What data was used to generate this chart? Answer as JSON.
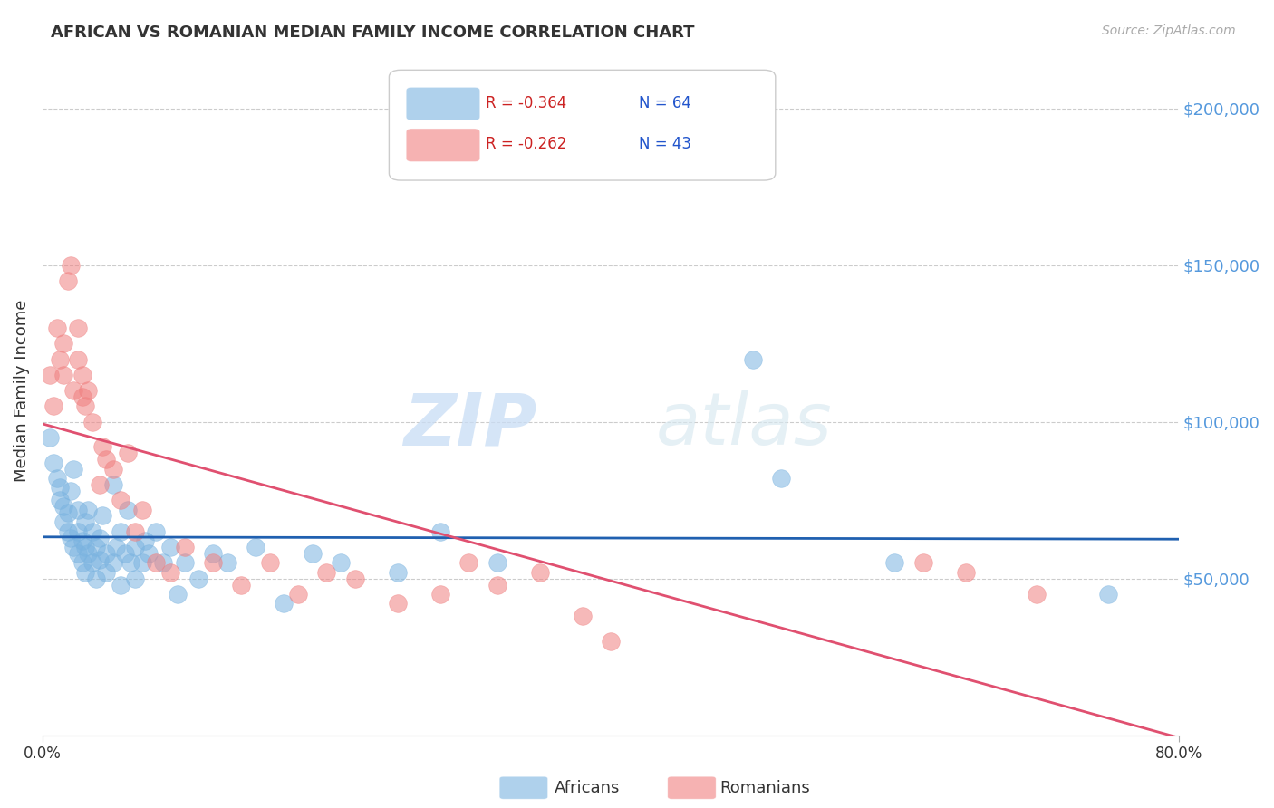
{
  "title": "AFRICAN VS ROMANIAN MEDIAN FAMILY INCOME CORRELATION CHART",
  "source": "Source: ZipAtlas.com",
  "ylabel": "Median Family Income",
  "xlim": [
    0.0,
    0.8
  ],
  "ylim": [
    0,
    220000
  ],
  "yticks": [
    50000,
    100000,
    150000,
    200000
  ],
  "ytick_labels": [
    "$50,000",
    "$100,000",
    "$150,000",
    "$200,000"
  ],
  "african_color": "#7ab3e0",
  "romanian_color": "#f08080",
  "african_line_color": "#2060b0",
  "romanian_line_color": "#e05070",
  "legend_R_african": "R = -0.364",
  "legend_N_african": "N = 64",
  "legend_R_romanian": "R = -0.262",
  "legend_N_romanian": "N = 43",
  "watermark_ZIP": "ZIP",
  "watermark_atlas": "atlas",
  "africans_label": "Africans",
  "romanians_label": "Romanians",
  "african_scatter_x": [
    0.005,
    0.008,
    0.01,
    0.012,
    0.012,
    0.015,
    0.015,
    0.018,
    0.018,
    0.02,
    0.02,
    0.022,
    0.022,
    0.025,
    0.025,
    0.025,
    0.028,
    0.028,
    0.03,
    0.03,
    0.03,
    0.032,
    0.032,
    0.035,
    0.035,
    0.038,
    0.038,
    0.04,
    0.04,
    0.042,
    0.045,
    0.045,
    0.05,
    0.05,
    0.052,
    0.055,
    0.055,
    0.058,
    0.06,
    0.062,
    0.065,
    0.065,
    0.07,
    0.072,
    0.075,
    0.08,
    0.085,
    0.09,
    0.095,
    0.1,
    0.11,
    0.12,
    0.13,
    0.15,
    0.17,
    0.19,
    0.21,
    0.25,
    0.28,
    0.32,
    0.5,
    0.52,
    0.6,
    0.75
  ],
  "african_scatter_y": [
    95000,
    87000,
    82000,
    79000,
    75000,
    73000,
    68000,
    65000,
    71000,
    63000,
    78000,
    60000,
    85000,
    72000,
    65000,
    58000,
    62000,
    55000,
    68000,
    60000,
    52000,
    58000,
    72000,
    65000,
    55000,
    60000,
    50000,
    56000,
    63000,
    70000,
    58000,
    52000,
    80000,
    55000,
    60000,
    65000,
    48000,
    58000,
    72000,
    55000,
    60000,
    50000,
    55000,
    62000,
    58000,
    65000,
    55000,
    60000,
    45000,
    55000,
    50000,
    58000,
    55000,
    60000,
    42000,
    58000,
    55000,
    52000,
    65000,
    55000,
    120000,
    82000,
    55000,
    45000
  ],
  "romanian_scatter_x": [
    0.005,
    0.008,
    0.01,
    0.012,
    0.015,
    0.015,
    0.018,
    0.02,
    0.022,
    0.025,
    0.025,
    0.028,
    0.028,
    0.03,
    0.032,
    0.035,
    0.04,
    0.042,
    0.045,
    0.05,
    0.055,
    0.06,
    0.065,
    0.07,
    0.08,
    0.09,
    0.1,
    0.12,
    0.14,
    0.16,
    0.18,
    0.2,
    0.22,
    0.25,
    0.28,
    0.3,
    0.32,
    0.35,
    0.38,
    0.4,
    0.62,
    0.65,
    0.7
  ],
  "romanian_scatter_y": [
    115000,
    105000,
    130000,
    120000,
    125000,
    115000,
    145000,
    150000,
    110000,
    130000,
    120000,
    108000,
    115000,
    105000,
    110000,
    100000,
    80000,
    92000,
    88000,
    85000,
    75000,
    90000,
    65000,
    72000,
    55000,
    52000,
    60000,
    55000,
    48000,
    55000,
    45000,
    52000,
    50000,
    42000,
    45000,
    55000,
    48000,
    52000,
    38000,
    30000,
    55000,
    52000,
    45000
  ]
}
